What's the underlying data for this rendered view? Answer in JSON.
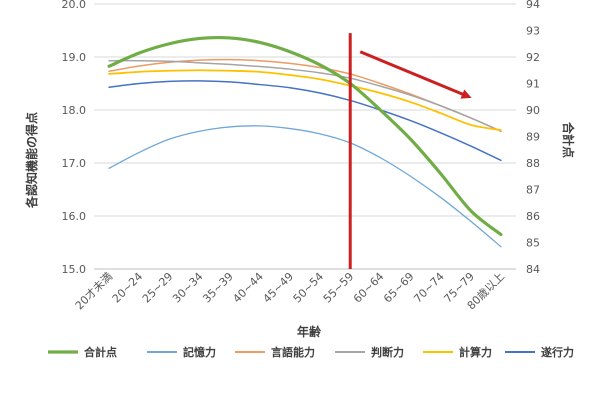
{
  "chart_data": {
    "type": "line",
    "xlabel": "年齢",
    "ylabel_left": "各認知機能の得点",
    "ylabel_right": "合計点",
    "categories": [
      "20才未満",
      "20~24",
      "25~29",
      "30~34",
      "35~39",
      "40~44",
      "45~49",
      "50~54",
      "55~59",
      "60~64",
      "65~69",
      "70~74",
      "75~79",
      "80歳以上"
    ],
    "y_left": {
      "min": 15,
      "max": 20,
      "ticks": [
        "15.0",
        "16.0",
        "17.0",
        "18.0",
        "19.0",
        "20.0"
      ]
    },
    "y_right": {
      "min": 84,
      "max": 94,
      "ticks": [
        "84",
        "85",
        "86",
        "87",
        "88",
        "89",
        "90",
        "91",
        "92",
        "93",
        "94"
      ]
    },
    "grid": true,
    "legend_position": "bottom",
    "series": [
      {
        "name": "合計点",
        "axis": "right",
        "color": "#70ad47",
        "width": 3.2,
        "values": [
          91.65,
          92.15,
          92.5,
          92.7,
          92.72,
          92.55,
          92.2,
          91.7,
          91.0,
          90.0,
          88.9,
          87.6,
          86.2,
          85.3
        ]
      },
      {
        "name": "記憶力",
        "axis": "left",
        "color": "#6fa8d8",
        "width": 1.3,
        "values": [
          16.9,
          17.2,
          17.45,
          17.6,
          17.68,
          17.7,
          17.65,
          17.55,
          17.38,
          17.1,
          16.75,
          16.35,
          15.9,
          15.42
        ]
      },
      {
        "name": "言語能力",
        "axis": "left",
        "color": "#ed9a63",
        "width": 1.5,
        "values": [
          18.73,
          18.83,
          18.9,
          18.94,
          18.95,
          18.93,
          18.88,
          18.8,
          18.68,
          18.5,
          18.3,
          18.08,
          17.85,
          17.6
        ]
      },
      {
        "name": "判断力",
        "axis": "left",
        "color": "#a5a5a5",
        "width": 1.5,
        "values": [
          18.93,
          18.93,
          18.92,
          18.89,
          18.86,
          18.82,
          18.77,
          18.7,
          18.6,
          18.45,
          18.28,
          18.08,
          17.85,
          17.6
        ]
      },
      {
        "name": "計算力",
        "axis": "left",
        "color": "#ffc000",
        "width": 1.8,
        "values": [
          18.68,
          18.72,
          18.74,
          18.75,
          18.74,
          18.72,
          18.66,
          18.58,
          18.46,
          18.32,
          18.15,
          17.94,
          17.72,
          17.62
        ]
      },
      {
        "name": "遂行力",
        "axis": "left",
        "color": "#4472c4",
        "width": 1.5,
        "values": [
          18.43,
          18.5,
          18.54,
          18.55,
          18.53,
          18.48,
          18.42,
          18.32,
          18.18,
          18.0,
          17.8,
          17.57,
          17.32,
          17.05
        ]
      }
    ],
    "annotations": [
      {
        "type": "vertical-line",
        "at_category": "55~59",
        "y_from": 15.0,
        "y_to": 19.45,
        "color": "#cc1f1f"
      },
      {
        "type": "arrow",
        "from_category": "55~59",
        "from_y": 19.1,
        "to_category": "75~79",
        "to_y": 18.25,
        "color": "#cc1f1f"
      }
    ]
  }
}
